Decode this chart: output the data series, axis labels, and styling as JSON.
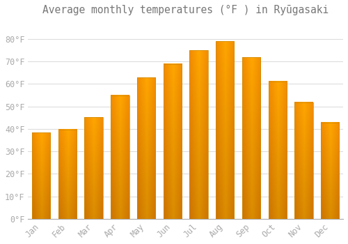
{
  "title": "Average monthly temperatures (°F ) in Ryūgasaki",
  "months": [
    "Jan",
    "Feb",
    "Mar",
    "Apr",
    "May",
    "Jun",
    "Jul",
    "Aug",
    "Sep",
    "Oct",
    "Nov",
    "Dec"
  ],
  "values": [
    38.3,
    39.7,
    45.1,
    54.9,
    62.8,
    68.9,
    75.0,
    79.0,
    71.8,
    61.2,
    51.8,
    42.8
  ],
  "bar_color": "#FFAA00",
  "bar_edge_color": "#CC8800",
  "ylim": [
    0,
    88
  ],
  "yticks": [
    0,
    10,
    20,
    30,
    40,
    50,
    60,
    70,
    80
  ],
  "ytick_labels": [
    "0°F",
    "10°F",
    "20°F",
    "30°F",
    "40°F",
    "50°F",
    "60°F",
    "70°F",
    "80°F"
  ],
  "bg_color": "#FFFFFF",
  "grid_color": "#DDDDDD",
  "font_color": "#AAAAAA",
  "title_color": "#777777",
  "font_family": "monospace",
  "title_fontsize": 10.5,
  "tick_fontsize": 8.5,
  "bar_width": 0.7
}
